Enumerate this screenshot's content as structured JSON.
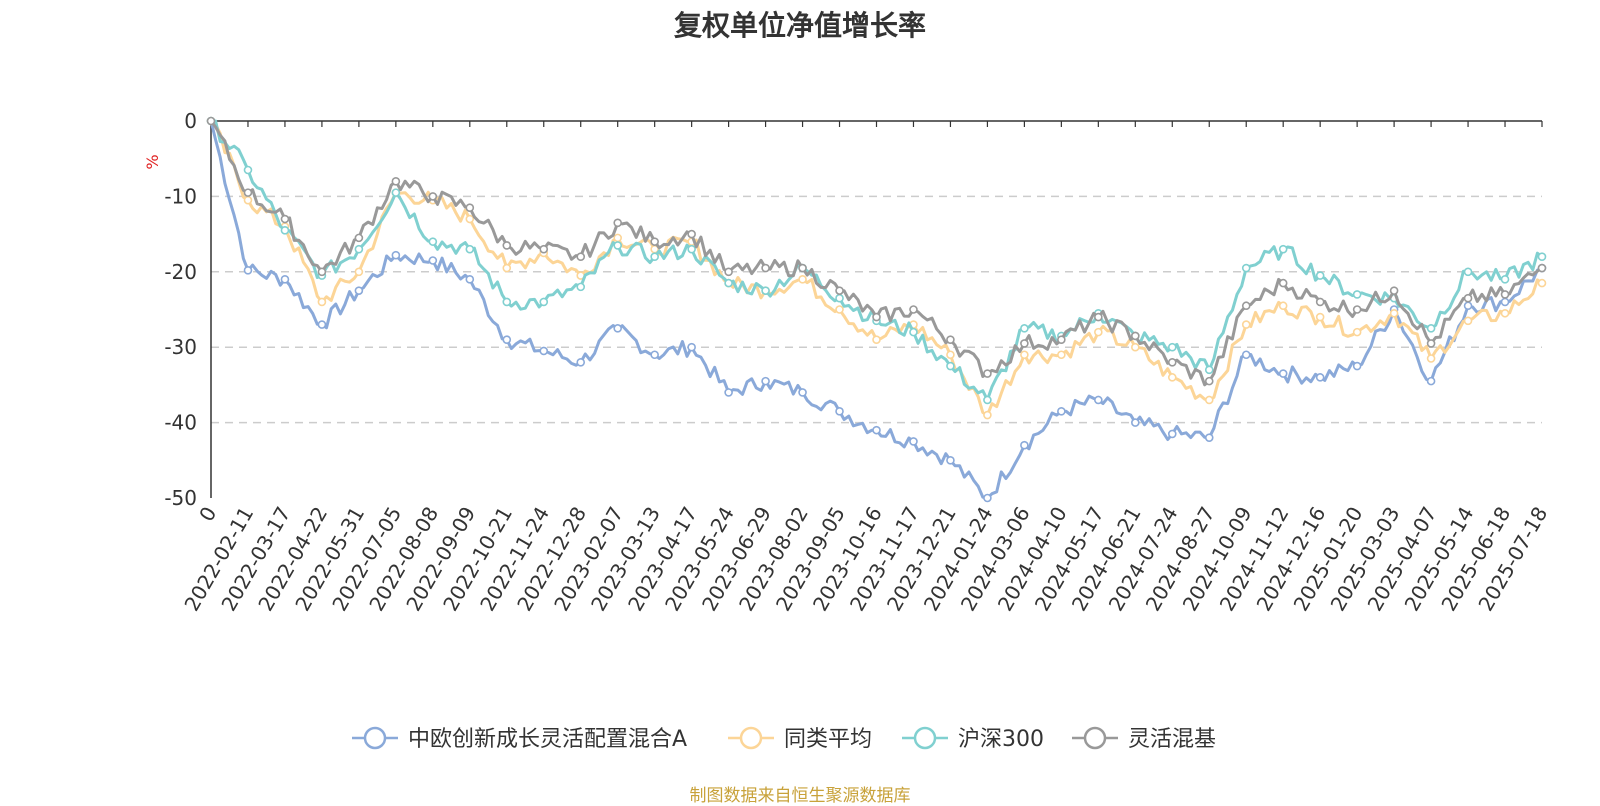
{
  "chart_data": {
    "type": "line",
    "title": "复权单位净值增长率",
    "ylabel": "%",
    "ylim": [
      -50,
      0
    ],
    "yticks": [
      0,
      -10,
      -20,
      -30,
      -40,
      -50
    ],
    "grid": true,
    "legend_position": "bottom-center",
    "xlabels": [
      "0",
      "2022-02-11",
      "2022-03-17",
      "2022-04-22",
      "2022-05-31",
      "2022-07-05",
      "2022-08-08",
      "2022-09-09",
      "2022-10-21",
      "2022-11-24",
      "2022-12-28",
      "2023-02-07",
      "2023-03-13",
      "2023-04-17",
      "2023-05-24",
      "2023-06-29",
      "2023-08-02",
      "2023-09-05",
      "2023-10-16",
      "2023-11-17",
      "2023-12-21",
      "2024-01-24",
      "2024-03-06",
      "2024-04-10",
      "2024-05-17",
      "2024-06-21",
      "2024-07-24",
      "2024-08-27",
      "2024-10-09",
      "2024-11-12",
      "2024-12-16",
      "2025-01-20",
      "2025-03-03",
      "2025-04-07",
      "2025-05-14",
      "2025-06-18",
      "2025-07-18"
    ],
    "series": [
      {
        "name": "中欧创新成长灵活配置混合A",
        "color": "#8aa9d9",
        "values": [
          0,
          -19.8,
          -21,
          -27,
          -22.5,
          -17.8,
          -18.5,
          -21,
          -29,
          -30.5,
          -32,
          -27.5,
          -31,
          -30,
          -36,
          -34.5,
          -36,
          -38.5,
          -41,
          -42.5,
          -45,
          -50,
          -43,
          -38.5,
          -37,
          -40,
          -41.5,
          -42,
          -31,
          -33.5,
          -34,
          -32.5,
          -25,
          -34.5,
          -24.5,
          -24,
          -19.5
        ]
      },
      {
        "name": "同类平均",
        "color": "#fcd597",
        "values": [
          0,
          -10.5,
          -14,
          -24,
          -20,
          -9.5,
          -10.5,
          -13,
          -19.5,
          -17.5,
          -20.5,
          -15.5,
          -17,
          -16,
          -21.5,
          -22.5,
          -21,
          -25,
          -29,
          -27,
          -31,
          -39,
          -31,
          -31,
          -28,
          -30,
          -34,
          -37,
          -27,
          -24.5,
          -26,
          -28,
          -25.5,
          -31.5,
          -26.5,
          -25.5,
          -21.5
        ]
      },
      {
        "name": "沪深300",
        "color": "#80d0d0",
        "values": [
          0,
          -6.5,
          -14.5,
          -20.5,
          -17,
          -9.5,
          -16,
          -17,
          -24,
          -24,
          -22,
          -16.5,
          -18,
          -17,
          -21.5,
          -22.5,
          -19.5,
          -23.5,
          -26.5,
          -28,
          -32.5,
          -37,
          -27.5,
          -28.5,
          -25.5,
          -28.5,
          -30,
          -33,
          -19.5,
          -17,
          -20.5,
          -23,
          -23.5,
          -27.5,
          -20,
          -21,
          -18
        ]
      },
      {
        "name": "灵活混基",
        "color": "#999999",
        "values": [
          0,
          -9.5,
          -13,
          -20,
          -15.5,
          -8,
          -10,
          -11.5,
          -16.5,
          -17,
          -18,
          -13.5,
          -16,
          -15,
          -20,
          -19.5,
          -19.5,
          -22.5,
          -26,
          -25,
          -29,
          -33.5,
          -29.5,
          -29,
          -26,
          -28.5,
          -32,
          -34.5,
          -24.5,
          -21.5,
          -24,
          -25,
          -22.5,
          -29.5,
          -23.5,
          -23,
          -19.5
        ]
      }
    ]
  },
  "source_text": "制图数据来自恒生聚源数据库"
}
